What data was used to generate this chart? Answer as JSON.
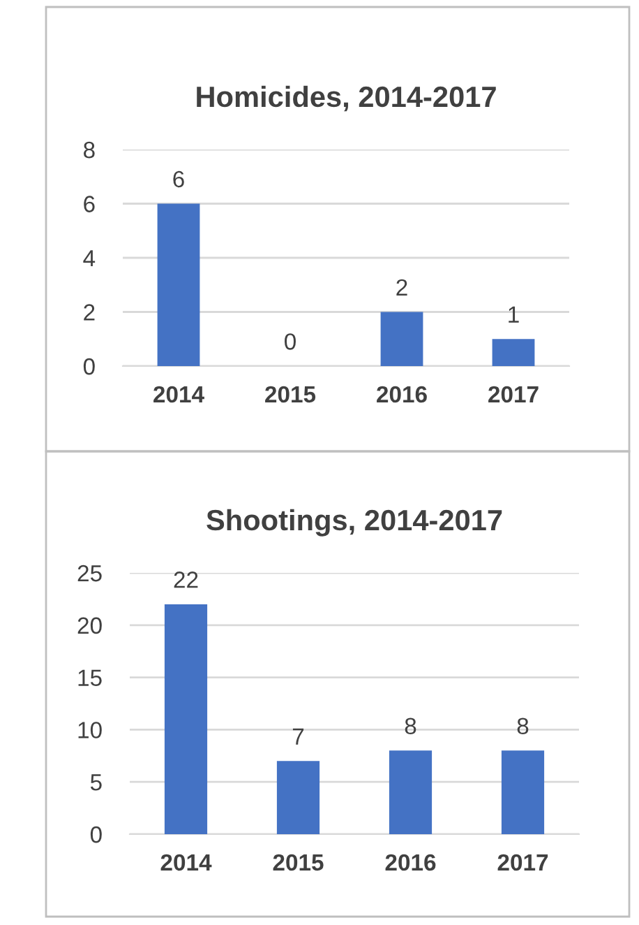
{
  "chart_data": [
    {
      "type": "bar",
      "title": "Homicides, 2014-2017",
      "categories": [
        "2014",
        "2015",
        "2016",
        "2017"
      ],
      "values": [
        6,
        0,
        2,
        1
      ],
      "color": "#4472c4",
      "ylim": [
        0,
        8
      ],
      "yticks": [
        0,
        2,
        4,
        6,
        8
      ],
      "grid": "y",
      "data_labels": true
    },
    {
      "type": "bar",
      "title": "Shootings, 2014-2017",
      "categories": [
        "2014",
        "2015",
        "2016",
        "2017"
      ],
      "values": [
        22,
        7,
        8,
        8
      ],
      "color": "#4472c4",
      "ylim": [
        0,
        25
      ],
      "yticks": [
        0,
        5,
        10,
        15,
        20,
        25
      ],
      "grid": "y",
      "data_labels": true
    }
  ]
}
